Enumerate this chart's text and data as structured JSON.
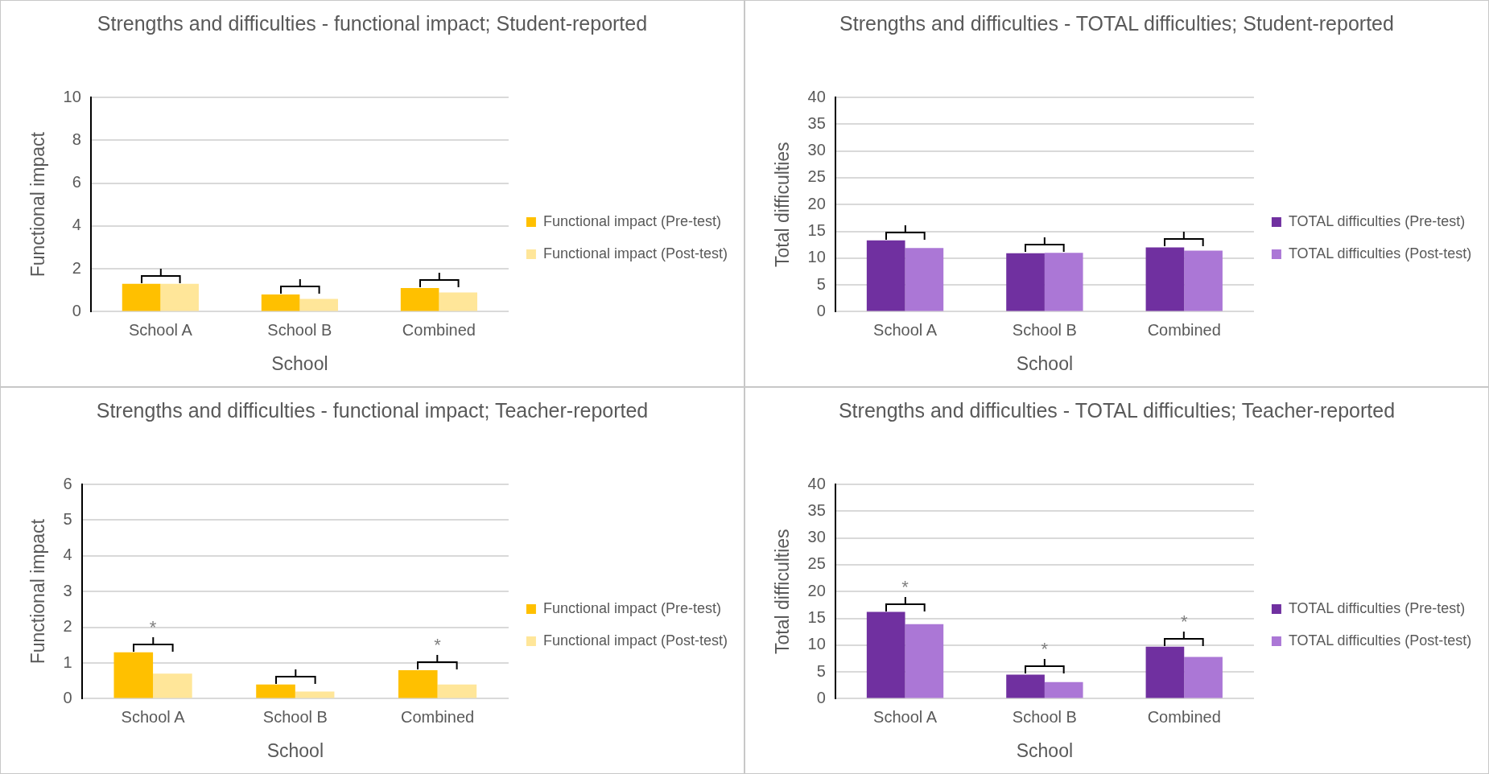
{
  "chart_data": [
    {
      "type": "bar",
      "title": "Strengths and difficulties - functional impact; Student-reported",
      "xlabel": "School",
      "ylabel": "Functional impact",
      "categories": [
        "School A",
        "School B",
        "Combined"
      ],
      "series": [
        {
          "name": "Functional impact (Pre-test)",
          "color": "#ffc000",
          "values": [
            1.3,
            0.8,
            1.1
          ]
        },
        {
          "name": "Functional impact (Post-test)",
          "color": "#ffe699",
          "values": [
            1.3,
            0.6,
            0.9
          ]
        }
      ],
      "ylim": [
        0,
        10
      ],
      "yticks": [
        0,
        2,
        4,
        6,
        8,
        10
      ],
      "grid": "y",
      "legend": "right"
    },
    {
      "type": "bar",
      "title": "Strengths and difficulties - TOTAL difficulties; Student-reported",
      "xlabel": "School",
      "ylabel": "Total difficulties",
      "categories": [
        "School A",
        "School B",
        "Combined"
      ],
      "series": [
        {
          "name": "TOTAL difficulties (Pre-test)",
          "color": "#7030a0",
          "values": [
            13.3,
            10.9,
            12.0
          ]
        },
        {
          "name": "TOTAL difficulties (Post-test)",
          "color": "#ab77d6",
          "values": [
            11.9,
            11.0,
            11.4
          ]
        }
      ],
      "ylim": [
        0,
        40
      ],
      "yticks": [
        0,
        5,
        10,
        15,
        20,
        25,
        30,
        35,
        40
      ],
      "grid": "y",
      "legend": "right"
    },
    {
      "type": "bar",
      "title": "Strengths and difficulties - functional impact; Teacher-reported",
      "xlabel": "School",
      "ylabel": "Functional impact",
      "categories": [
        "School A",
        "School B",
        "Combined"
      ],
      "series": [
        {
          "name": "Functional impact (Pre-test)",
          "color": "#ffc000",
          "values": [
            1.3,
            0.4,
            0.8
          ]
        },
        {
          "name": "Functional impact (Post-test)",
          "color": "#ffe699",
          "values": [
            0.7,
            0.2,
            0.4
          ]
        }
      ],
      "ylim": [
        0,
        6
      ],
      "yticks": [
        0,
        1,
        2,
        3,
        4,
        5,
        6
      ],
      "grid": "y",
      "legend": "right",
      "annotations": [
        {
          "text": "*",
          "x": "School A",
          "y": 1.3
        },
        {
          "text": "*",
          "x": "Combined",
          "y": 0.8
        }
      ]
    },
    {
      "type": "bar",
      "title": "Strengths and difficulties - TOTAL difficulties; Teacher-reported",
      "xlabel": "School",
      "ylabel": "Total difficulties",
      "categories": [
        "School A",
        "School B",
        "Combined"
      ],
      "series": [
        {
          "name": "TOTAL difficulties (Pre-test)",
          "color": "#7030a0",
          "values": [
            16.2,
            4.5,
            9.7
          ]
        },
        {
          "name": "TOTAL difficulties (Post-test)",
          "color": "#ab77d6",
          "values": [
            13.9,
            3.1,
            7.8
          ]
        }
      ],
      "ylim": [
        0,
        40
      ],
      "yticks": [
        0,
        5,
        10,
        15,
        20,
        25,
        30,
        35,
        40
      ],
      "grid": "y",
      "legend": "right",
      "annotations": [
        {
          "text": "*",
          "x": "School A",
          "y": 16.2
        },
        {
          "text": "*",
          "x": "School B",
          "y": 4.5
        },
        {
          "text": "*",
          "x": "Combined",
          "y": 9.7
        }
      ]
    }
  ]
}
